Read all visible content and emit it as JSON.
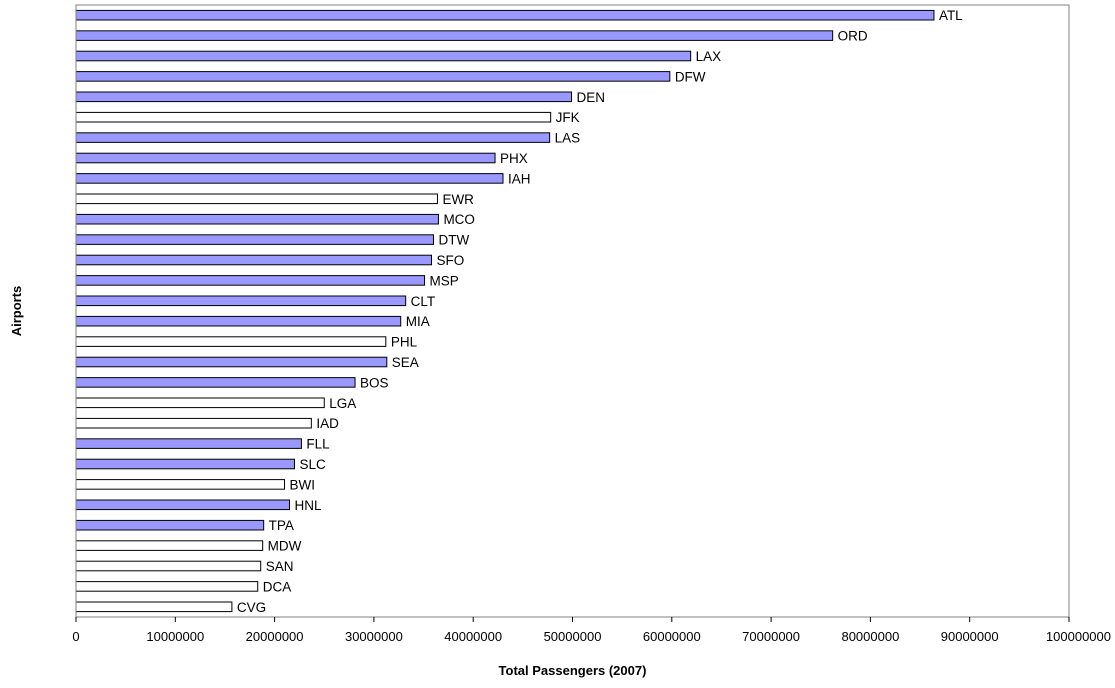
{
  "chart_data": {
    "type": "bar",
    "orientation": "horizontal",
    "title": "",
    "xlabel": "Total Passengers (2007)",
    "ylabel": "Airports",
    "xlim": [
      0,
      100000000
    ],
    "x_ticks": [
      0,
      10000000,
      20000000,
      30000000,
      40000000,
      50000000,
      60000000,
      70000000,
      80000000,
      90000000,
      100000000
    ],
    "x_tick_labels": [
      "0",
      "10000000",
      "20000000",
      "30000000",
      "40000000",
      "50000000",
      "60000000",
      "70000000",
      "80000000",
      "90000000",
      "100000000"
    ],
    "grid": false,
    "legend": "none",
    "colors": {
      "highlighted": "#9999ff",
      "plain": "#ffffff",
      "outline": "#000000"
    },
    "categories": [
      "ATL",
      "ORD",
      "LAX",
      "DFW",
      "DEN",
      "JFK",
      "LAS",
      "PHX",
      "IAH",
      "EWR",
      "MCO",
      "DTW",
      "SFO",
      "MSP",
      "CLT",
      "MIA",
      "PHL",
      "SEA",
      "BOS",
      "LGA",
      "IAD",
      "FLL",
      "SLC",
      "BWI",
      "HNL",
      "TPA",
      "MDW",
      "SAN",
      "DCA",
      "CVG"
    ],
    "values": [
      86400000,
      76200000,
      61900000,
      59800000,
      49900000,
      47800000,
      47700000,
      42200000,
      43000000,
      36400000,
      36500000,
      36000000,
      35800000,
      35100000,
      33200000,
      32700000,
      31200000,
      31300000,
      28100000,
      25000000,
      23700000,
      22700000,
      22000000,
      21000000,
      21500000,
      18900000,
      18800000,
      18600000,
      18300000,
      15700000
    ],
    "highlighted": [
      true,
      true,
      true,
      true,
      true,
      false,
      true,
      true,
      true,
      false,
      true,
      true,
      true,
      true,
      true,
      true,
      false,
      true,
      true,
      false,
      false,
      true,
      true,
      false,
      true,
      true,
      false,
      false,
      false,
      false
    ]
  }
}
